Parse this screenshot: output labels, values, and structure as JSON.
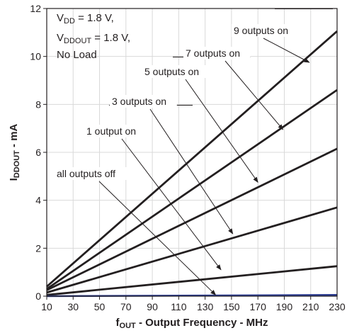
{
  "chart_data": {
    "type": "line",
    "xlabel_main": "f",
    "xlabel_sub": "OUT",
    "xlabel_rest": " - Output Frequency - MHz",
    "ylabel_main": "I",
    "ylabel_sub": "DDOUT",
    "ylabel_rest": " - mA",
    "xlim": [
      10,
      230
    ],
    "ylim": [
      0,
      12
    ],
    "x_ticks": [
      10,
      30,
      50,
      70,
      90,
      110,
      130,
      150,
      170,
      190,
      210,
      230
    ],
    "y_ticks": [
      0,
      2,
      4,
      6,
      8,
      10,
      12
    ],
    "grid": true,
    "conditions": [
      {
        "main": "V",
        "sub": "DD",
        "rest": " = 1.8 V,"
      },
      {
        "main": "V",
        "sub": "DDOUT",
        "rest": " = 1.8 V,"
      },
      {
        "main": "No Load",
        "sub": "",
        "rest": ""
      }
    ],
    "series": [
      {
        "name": "9 outputs on",
        "x": [
          10,
          230
        ],
        "y": [
          0.4,
          11.05
        ],
        "color": "#231f20"
      },
      {
        "name": "7 outputs on",
        "x": [
          10,
          230
        ],
        "y": [
          0.3,
          8.6
        ],
        "color": "#231f20"
      },
      {
        "name": "5 outputs on",
        "x": [
          10,
          230
        ],
        "y": [
          0.25,
          6.15
        ],
        "color": "#231f20"
      },
      {
        "name": "3 outputs on",
        "x": [
          10,
          230
        ],
        "y": [
          0.15,
          3.7
        ],
        "color": "#231f20"
      },
      {
        "name": "1 output on",
        "x": [
          10,
          230
        ],
        "y": [
          0.05,
          1.25
        ],
        "color": "#231f20"
      },
      {
        "name": "all outputs off",
        "x": [
          10,
          230
        ],
        "y": [
          0.0,
          0.05
        ],
        "color": "#2a3a8f"
      }
    ],
    "annotations": [
      {
        "text": "9 outputs on",
        "target_x": 209,
        "target_y": 9.75
      },
      {
        "text": "7 outputs on",
        "target_x": 189,
        "target_y": 6.95
      },
      {
        "text": "5 outputs on",
        "target_x": 170,
        "target_y": 4.75
      },
      {
        "text": "3 outputs on",
        "target_x": 151,
        "target_y": 2.6
      },
      {
        "text": "1 output on",
        "target_x": 142,
        "target_y": 1.1
      },
      {
        "text": "all outputs off",
        "target_x": 138,
        "target_y": 0.05
      }
    ]
  }
}
